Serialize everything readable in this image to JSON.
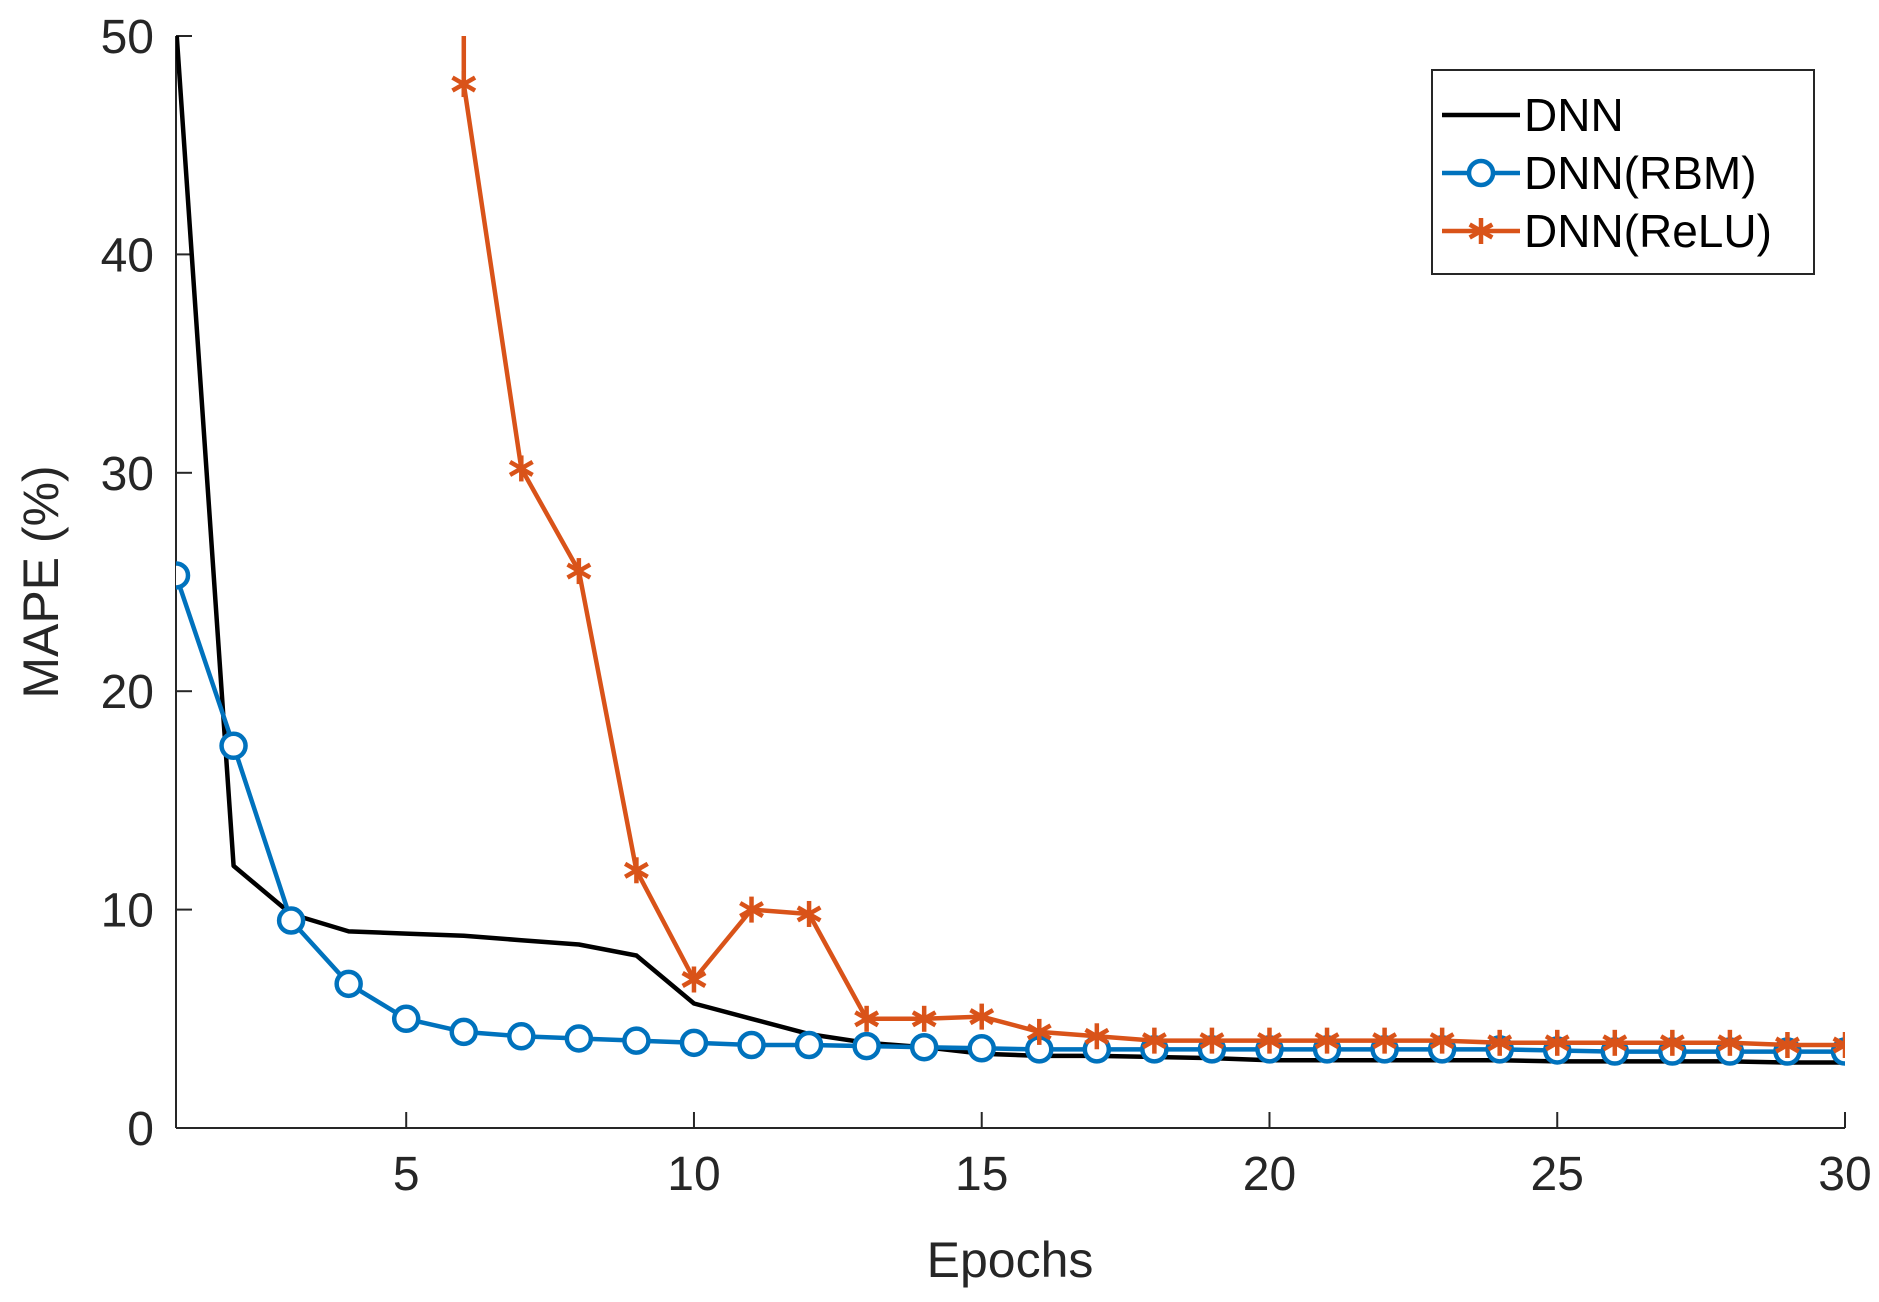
{
  "chart_data": {
    "type": "line",
    "title": "",
    "xlabel": "Epochs",
    "ylabel": "MAPE (%)",
    "xlim": [
      1,
      30
    ],
    "ylim": [
      0,
      50
    ],
    "xticks": [
      5,
      10,
      15,
      20,
      25,
      30
    ],
    "yticks": [
      0,
      10,
      20,
      30,
      40,
      50
    ],
    "grid": false,
    "legend_position": "top-right",
    "x": [
      1,
      2,
      3,
      4,
      5,
      6,
      7,
      8,
      9,
      10,
      11,
      12,
      13,
      14,
      15,
      16,
      17,
      18,
      19,
      20,
      21,
      22,
      23,
      24,
      25,
      26,
      27,
      28,
      29,
      30
    ],
    "series": [
      {
        "name": "DNN",
        "color": "#000000",
        "marker": "none",
        "values": [
          50.5,
          12.0,
          9.8,
          9.0,
          8.9,
          8.8,
          8.6,
          8.4,
          7.9,
          5.7,
          5.0,
          4.3,
          3.9,
          3.7,
          3.4,
          3.3,
          3.3,
          3.25,
          3.2,
          3.1,
          3.1,
          3.1,
          3.1,
          3.1,
          3.05,
          3.05,
          3.05,
          3.05,
          3.0,
          3.0
        ]
      },
      {
        "name": "DNN(RBM)",
        "color": "#0072BD",
        "marker": "circle",
        "values": [
          25.3,
          17.5,
          9.5,
          6.6,
          5.0,
          4.4,
          4.2,
          4.1,
          4.0,
          3.9,
          3.8,
          3.8,
          3.75,
          3.7,
          3.65,
          3.6,
          3.6,
          3.6,
          3.6,
          3.6,
          3.6,
          3.6,
          3.6,
          3.6,
          3.55,
          3.5,
          3.5,
          3.5,
          3.5,
          3.5
        ]
      },
      {
        "name": "DNN(ReLU)",
        "color": "#D95319",
        "marker": "asterisk",
        "values": [
          null,
          null,
          null,
          null,
          null,
          47.8,
          30.2,
          25.5,
          11.8,
          6.8,
          10.0,
          9.8,
          5.0,
          5.0,
          5.1,
          4.4,
          4.2,
          4.0,
          4.0,
          4.0,
          4.0,
          4.0,
          4.0,
          3.9,
          3.9,
          3.9,
          3.9,
          3.9,
          3.8,
          3.8
        ],
        "line_start": {
          "x": 6.0,
          "y": 50.0
        }
      }
    ]
  }
}
